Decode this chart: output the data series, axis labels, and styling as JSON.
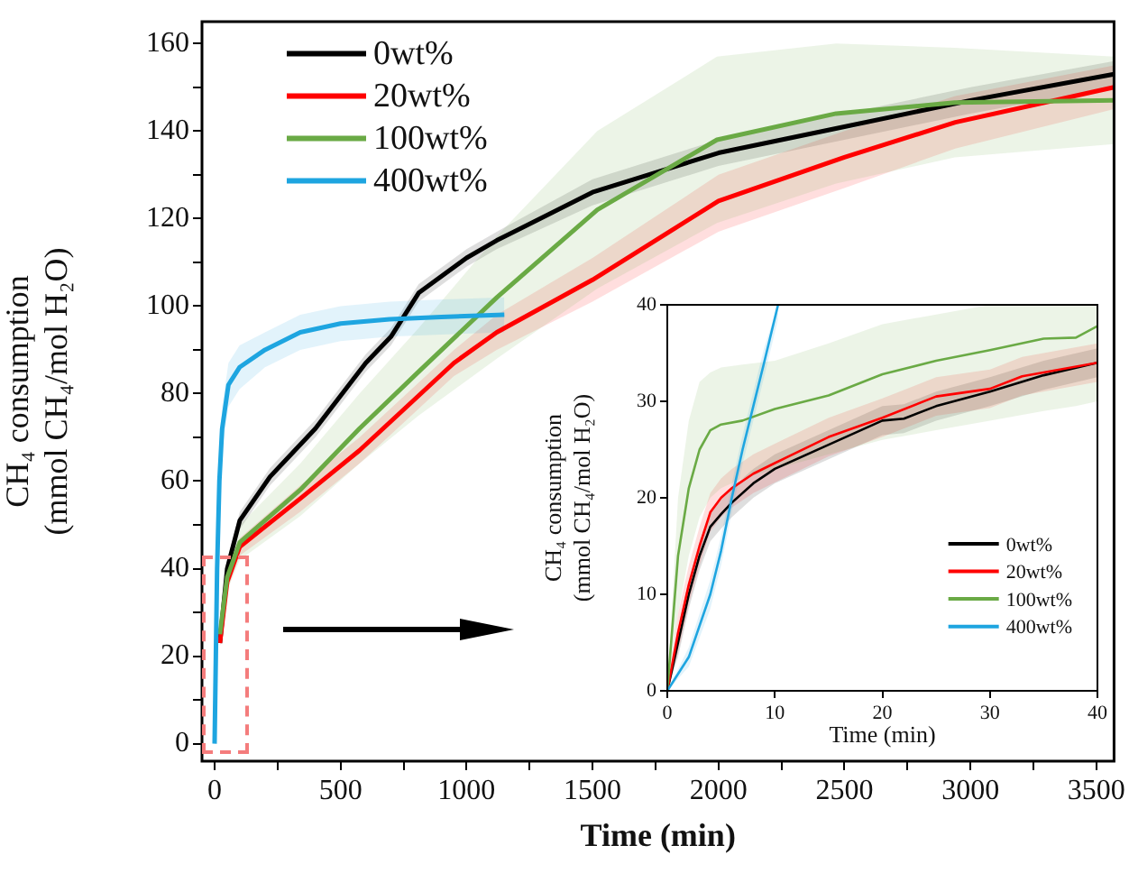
{
  "chart_data": [
    {
      "type": "line",
      "xlabel": "Time (min)",
      "ylabel": "CH₄ consumption (mmol CH₄/mol H₂O)",
      "xlim": [
        -50,
        3570
      ],
      "ylim": [
        -4,
        165
      ],
      "xticks": [
        0,
        {
          "value": 250,
          "label": null
        },
        500,
        {
          "value": 750,
          "label": null
        },
        1000,
        {
          "value": 1250,
          "label": null
        },
        1500,
        {
          "value": 1750,
          "label": null
        },
        2000,
        {
          "value": 2250,
          "label": null
        },
        2500,
        {
          "value": 2750,
          "label": null
        },
        3000,
        {
          "value": 3250,
          "label": null
        },
        3500
      ],
      "yticks": [
        0,
        {
          "value": 10,
          "label": null
        },
        20,
        {
          "value": 30,
          "label": null
        },
        40,
        {
          "value": 50,
          "label": null
        },
        60,
        {
          "value": 70,
          "label": null
        },
        80,
        {
          "value": 90,
          "label": null
        },
        100,
        {
          "value": 110,
          "label": null
        },
        120,
        {
          "value": 130,
          "label": null
        },
        140,
        {
          "value": 150,
          "label": null
        },
        160
      ],
      "legend": "top left",
      "series": [
        {
          "name": "0wt%",
          "color": "#000000",
          "x": [
            21,
            50,
            100,
            220,
            400,
            600,
            700,
            810,
            1000,
            1120,
            1500,
            2000,
            2500,
            3000,
            3570
          ],
          "values": [
            23,
            40,
            51,
            61,
            72,
            87,
            93,
            103,
            111,
            115,
            126,
            135,
            141,
            147,
            153
          ],
          "lower": [
            22,
            38,
            49,
            59,
            70,
            85,
            91,
            101,
            109,
            113,
            123,
            132,
            138,
            144,
            150
          ],
          "upper": [
            24,
            42,
            53,
            63,
            74,
            89,
            95,
            105,
            113,
            117,
            129,
            138,
            144,
            150,
            156
          ]
        },
        {
          "name": "20wt%",
          "color": "#ff0000",
          "x": [
            21,
            50,
            100,
            340,
            575,
            950,
            1120,
            1500,
            2000,
            2500,
            2940,
            3570
          ],
          "values": [
            23,
            37,
            45,
            56,
            67,
            87,
            94,
            106,
            124,
            134,
            142,
            150
          ],
          "lower": [
            22,
            35,
            43,
            53,
            64,
            84,
            90,
            101,
            117,
            127,
            136,
            145
          ],
          "upper": [
            24,
            39,
            47,
            59,
            70,
            90,
            98,
            111,
            130,
            140,
            148,
            155
          ]
        },
        {
          "name": "100wt%",
          "color": "#6aaa45",
          "x": [
            21,
            50,
            100,
            340,
            575,
            810,
            1121,
            1519,
            1994,
            2467,
            2938,
            3570
          ],
          "values": [
            25,
            38,
            46,
            58,
            72,
            85,
            102,
            122,
            138,
            144,
            146.5,
            147
          ],
          "lower": [
            23,
            35,
            42,
            52,
            64,
            75,
            88,
            104,
            119,
            128,
            134,
            137
          ],
          "upper": [
            27,
            41,
            50,
            64,
            80,
            95,
            116,
            140,
            157,
            160,
            159,
            157
          ]
        },
        {
          "name": "400wt%",
          "color": "#1ea5e0",
          "x": [
            0,
            5,
            10,
            19,
            30,
            55,
            99,
            200,
            340,
            500,
            695,
            900,
            1150
          ],
          "values": [
            0,
            20,
            40,
            60,
            72,
            82,
            86,
            90,
            94,
            96,
            97,
            97.5,
            98
          ],
          "lower": [
            0,
            17,
            36,
            55,
            67,
            77,
            81,
            86,
            90,
            92,
            93,
            93.5,
            94
          ],
          "upper": [
            0,
            23,
            44,
            65,
            77,
            87,
            91,
            94,
            98,
            100,
            101,
            101.5,
            102
          ]
        }
      ]
    },
    {
      "type": "line",
      "xlabel": "Time (min)",
      "ylabel": "CH₄ consumption (mmol CH₄/mol H₂O)",
      "xlim": [
        0,
        40
      ],
      "ylim": [
        0,
        40
      ],
      "xticks": [
        0,
        10,
        20,
        30,
        40
      ],
      "yticks": [
        0,
        10,
        20,
        30,
        40
      ],
      "legend": "bottom right",
      "series": [
        {
          "name": "0wt%",
          "color": "#000000",
          "x": [
            0,
            1,
            2,
            3,
            4,
            5,
            6,
            8,
            10,
            15,
            20,
            22,
            25,
            30,
            35,
            40
          ],
          "values": [
            0,
            5,
            10,
            14,
            17,
            18.3,
            19.5,
            21.5,
            23,
            25.5,
            28,
            28.2,
            29.5,
            31,
            32.7,
            34
          ],
          "lower": [
            0,
            3.5,
            8.5,
            12.5,
            15.5,
            16.8,
            18,
            20,
            21.5,
            24,
            26.5,
            26.7,
            28,
            29.5,
            31.2,
            32.5
          ],
          "upper": [
            0,
            6.5,
            11.5,
            15.5,
            18.5,
            19.8,
            21,
            23,
            24.5,
            27,
            29.5,
            29.7,
            31,
            32.5,
            34.2,
            35.5
          ]
        },
        {
          "name": "20wt%",
          "color": "#ff0000",
          "x": [
            0,
            1,
            2,
            3,
            4,
            5,
            6,
            8,
            10,
            15,
            20,
            25,
            30,
            33,
            40
          ],
          "values": [
            0,
            6,
            11,
            15,
            18.5,
            20,
            21,
            22.5,
            23.6,
            26.3,
            28.3,
            30.5,
            31.3,
            32.6,
            34
          ],
          "lower": [
            0,
            4,
            9,
            13,
            16.5,
            18,
            19,
            20.5,
            21.6,
            24.3,
            26.3,
            28.5,
            29.3,
            30.6,
            32
          ],
          "upper": [
            0,
            8,
            13,
            17,
            20.5,
            22,
            23,
            24.5,
            25.6,
            28.3,
            30.3,
            32.5,
            33.3,
            34.6,
            36
          ]
        },
        {
          "name": "100wt%",
          "color": "#6aaa45",
          "x": [
            0,
            1,
            2,
            3,
            4,
            5,
            7,
            10,
            15,
            20,
            25,
            30,
            35,
            38,
            40
          ],
          "values": [
            0,
            14,
            21,
            25,
            27,
            27.6,
            28,
            29.2,
            30.6,
            32.8,
            34.2,
            35.3,
            36.5,
            36.6,
            37.8
          ],
          "lower": [
            0,
            8,
            14,
            18,
            20,
            21,
            22,
            23,
            24.5,
            26,
            27,
            28,
            29,
            29.5,
            30
          ],
          "upper": [
            0,
            20,
            28,
            32,
            33,
            33.5,
            33.8,
            34.2,
            36,
            38,
            39,
            40,
            40,
            40,
            40
          ]
        },
        {
          "name": "400wt%",
          "color": "#1ea5e0",
          "x": [
            0,
            2,
            4,
            5,
            6,
            7,
            8,
            9,
            10.3
          ],
          "values": [
            0,
            3.5,
            10,
            14.5,
            20,
            25,
            29.5,
            34,
            40
          ],
          "lower": [
            0,
            2.5,
            8.5,
            13,
            18.5,
            23.5,
            28,
            32.5,
            38.5
          ],
          "upper": [
            0,
            4.5,
            11.5,
            16,
            21.5,
            26.5,
            31,
            35.5,
            40
          ]
        }
      ]
    }
  ]
}
